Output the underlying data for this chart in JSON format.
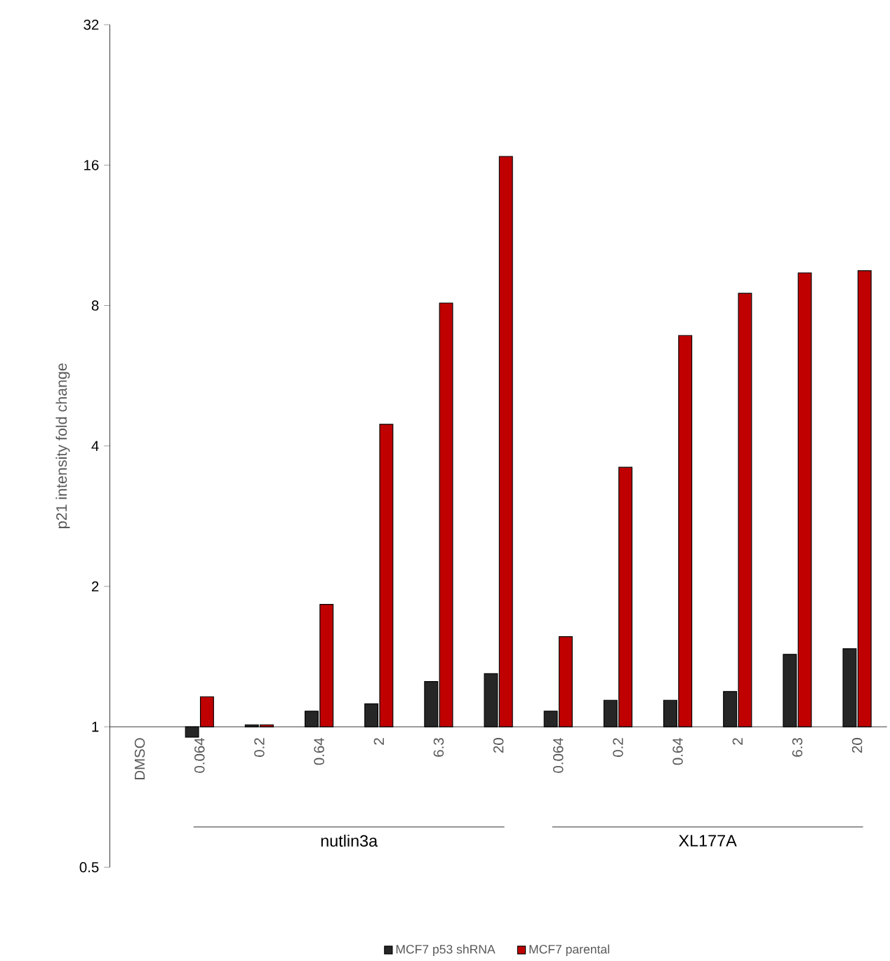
{
  "chart_data": {
    "type": "bar",
    "ylabel": "p21 intensity fold change",
    "log": "y",
    "categories": [
      "DMSO",
      "0.064",
      "0.2",
      "0.64",
      "2",
      "6.3",
      "20",
      "0.064",
      "0.2",
      "0.64",
      "2",
      "6.3",
      "20"
    ],
    "series": [
      {
        "name": "MCF7 p53 shRNA",
        "color": "#262626",
        "base": [
          null,
          1,
          1,
          1,
          1,
          1,
          1,
          1,
          1,
          1,
          1,
          1,
          1
        ],
        "values": [
          null,
          -0.05,
          0.01,
          0.08,
          0.12,
          0.25,
          0.3,
          0.08,
          0.14,
          0.14,
          0.19,
          0.43,
          0.47
        ]
      },
      {
        "name": "MCF7 parental",
        "color": "#c00000",
        "base": [
          null,
          1,
          1,
          1,
          1,
          1,
          1,
          1,
          1,
          1,
          1,
          1,
          1
        ],
        "values": [
          null,
          0.16,
          0.01,
          0.83,
          3.45,
          7.1,
          15.7,
          0.56,
          2.6,
          5.9,
          7.5,
          8.4,
          8.5
        ]
      }
    ],
    "ylim": [
      0.5,
      32
    ],
    "yticks": [
      0.5,
      1,
      2,
      4,
      8,
      16,
      32
    ],
    "legend": "bottom",
    "grid": false,
    "annotations": [
      "nutlin3a",
      "XL177A"
    ]
  }
}
